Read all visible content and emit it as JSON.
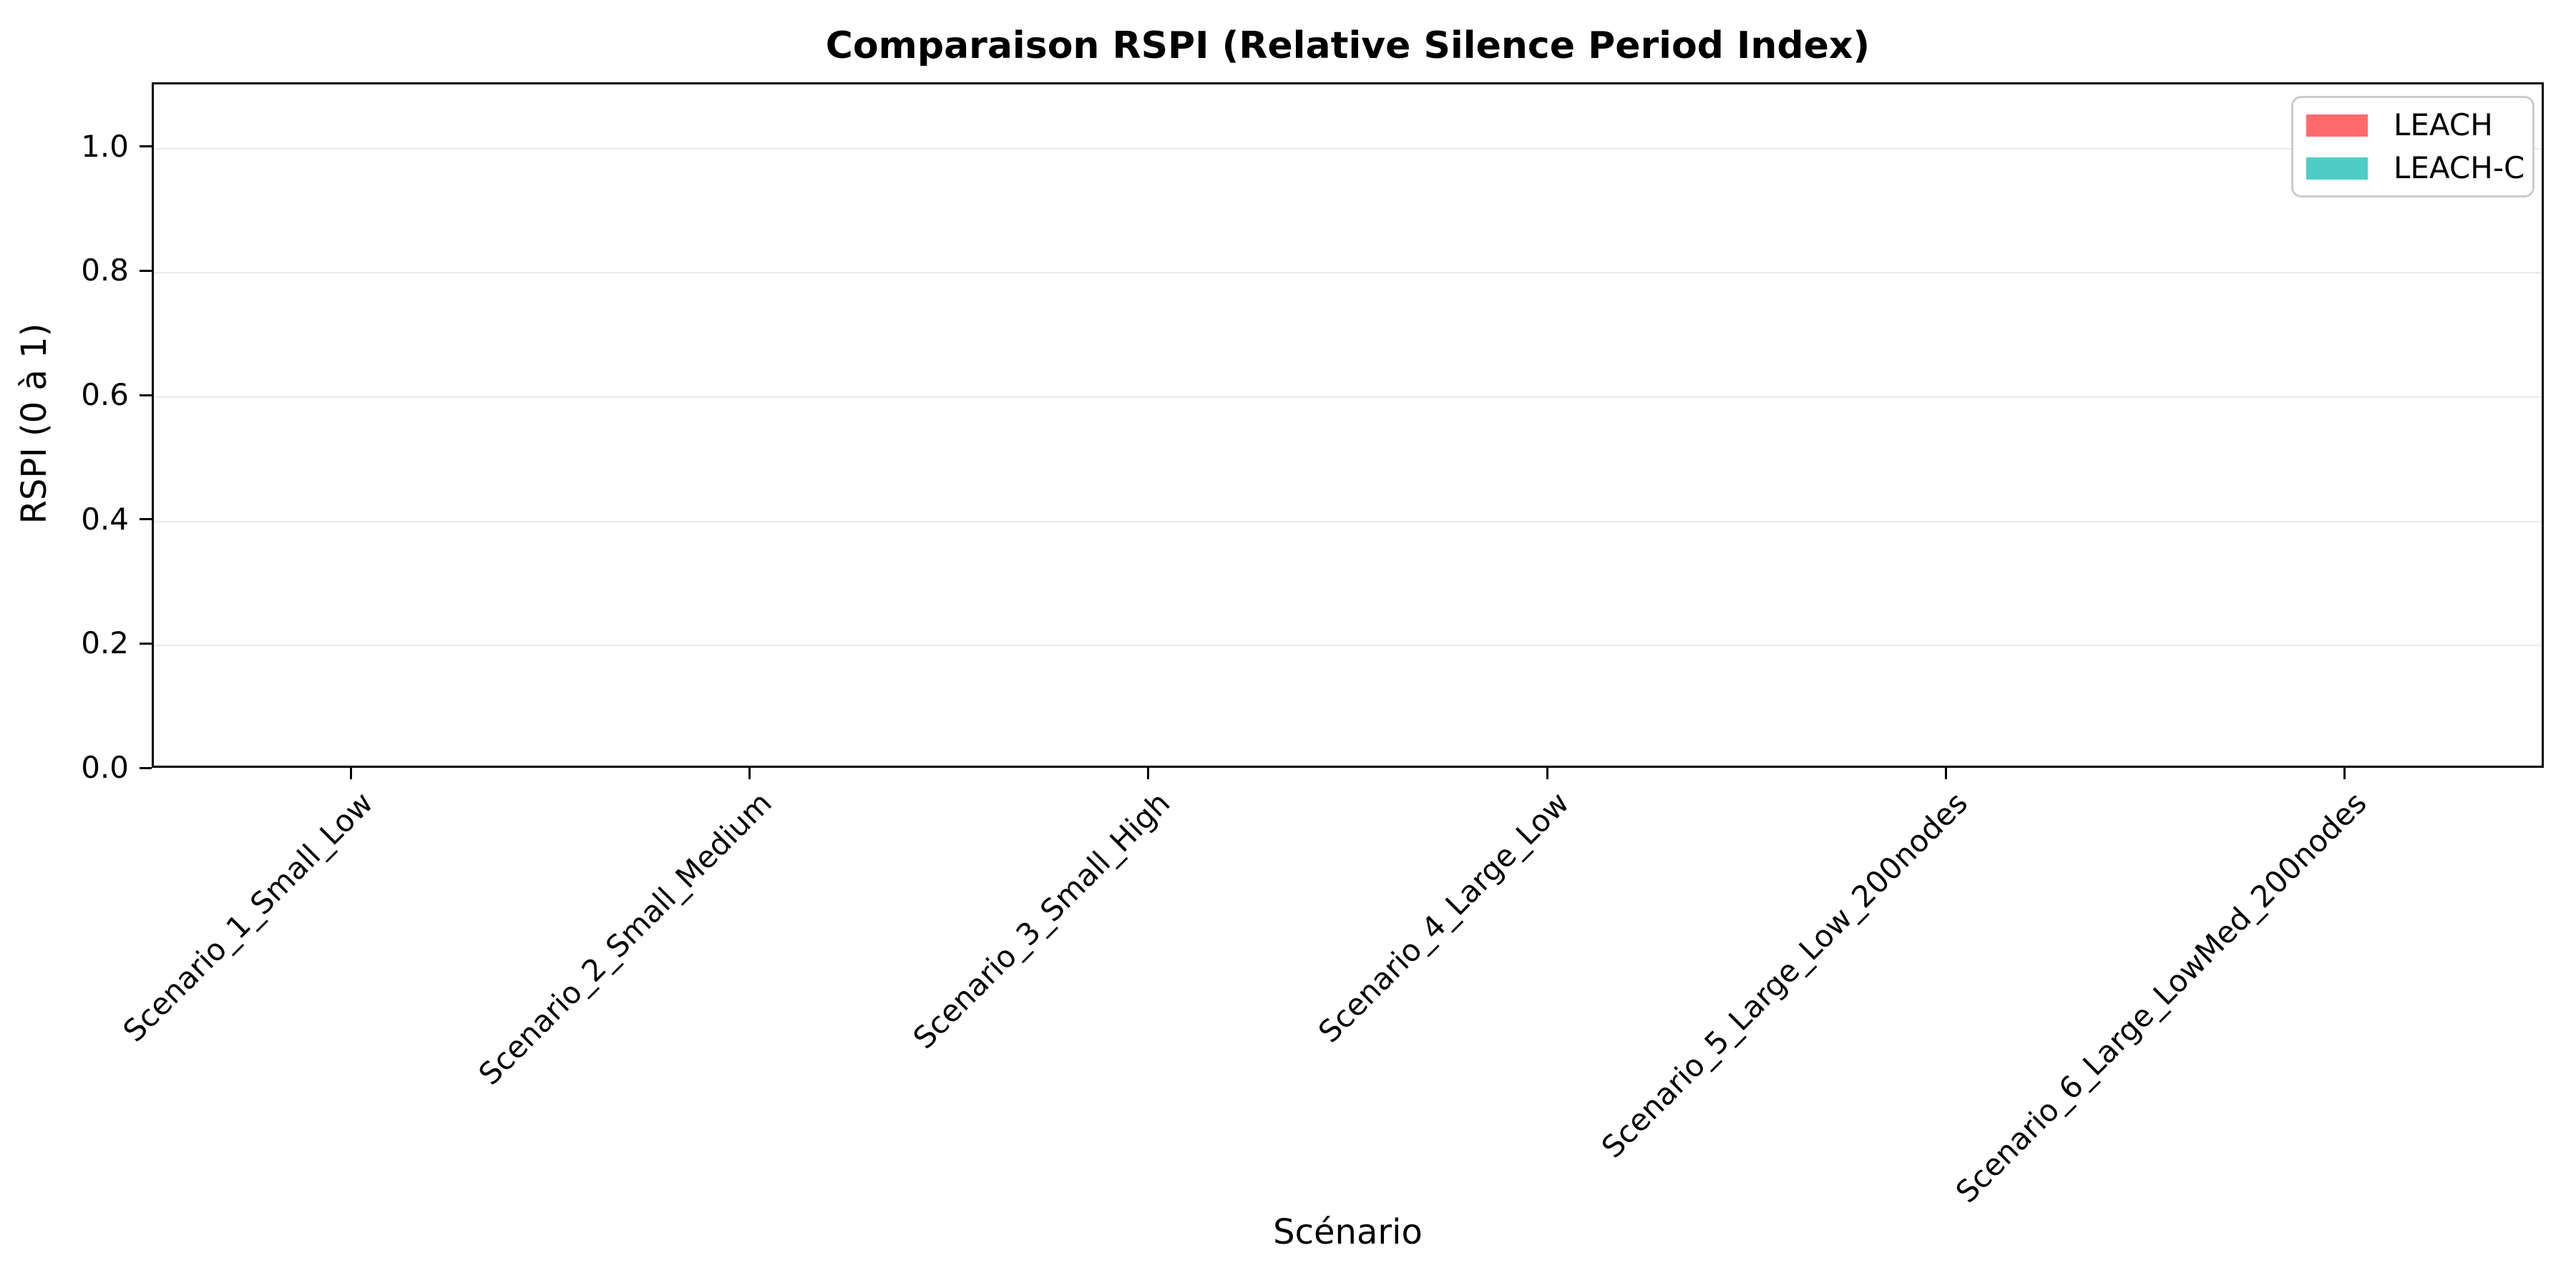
{
  "chart_data": {
    "type": "bar",
    "title": "Comparaison RSPI (Relative Silence Period Index)",
    "xlabel": "Scénario",
    "ylabel": "RSPI (0 à 1)",
    "categories": [
      "Scenario_1_Small_Low",
      "Scenario_2_Small_Medium",
      "Scenario_3_Small_High",
      "Scenario_4_Large_Low",
      "Scenario_5_Large_Low_200nodes",
      "Scenario_6_Large_LowMed_200nodes"
    ],
    "series": [
      {
        "name": "LEACH",
        "color": "#FF6B6B",
        "values": [
          0.0,
          0.0,
          0.0,
          0.0,
          0.0,
          0.0
        ]
      },
      {
        "name": "LEACH-C",
        "color": "#4ECDC4",
        "values": [
          0.0,
          0.0,
          0.0,
          0.0,
          0.0,
          0.0
        ]
      }
    ],
    "ylim": [
      0,
      1.1
    ],
    "yticks": [
      0.0,
      0.2,
      0.4,
      0.6,
      0.8,
      1.0
    ],
    "ytick_labels": [
      "0.0",
      "0.2",
      "0.4",
      "0.6",
      "0.8",
      "1.0"
    ],
    "grid": "horizontal",
    "gridline_color": "#e9e9e9",
    "legend_position": "upper right",
    "spine_color": "#000000"
  }
}
